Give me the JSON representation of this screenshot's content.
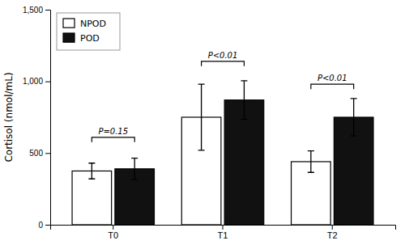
{
  "chart_data": {
    "type": "bar",
    "categories": [
      "T0",
      "T1",
      "T2"
    ],
    "series": [
      {
        "name": "NPOD",
        "color": "#ffffff",
        "values": [
          375,
          750,
          440
        ],
        "errors": [
          55,
          230,
          75
        ]
      },
      {
        "name": "POD",
        "color": "#111111",
        "values": [
          390,
          870,
          750
        ],
        "errors": [
          75,
          135,
          130
        ]
      }
    ],
    "ylabel": "Cortisol (nmol/mL)",
    "ylim": [
      0,
      1500
    ],
    "yticks": [
      0,
      500,
      {
        "value": 1000,
        "label": "1,000"
      },
      {
        "value": 1500,
        "label": "1,500"
      }
    ],
    "annotations": [
      {
        "text": "P=0.15",
        "category": "T0",
        "y": 610
      },
      {
        "text": "P<0.01",
        "category": "T1",
        "y": 1140
      },
      {
        "text": "P<0.01",
        "category": "T2",
        "y": 980
      }
    ],
    "legend": "upper left",
    "grid": false
  }
}
